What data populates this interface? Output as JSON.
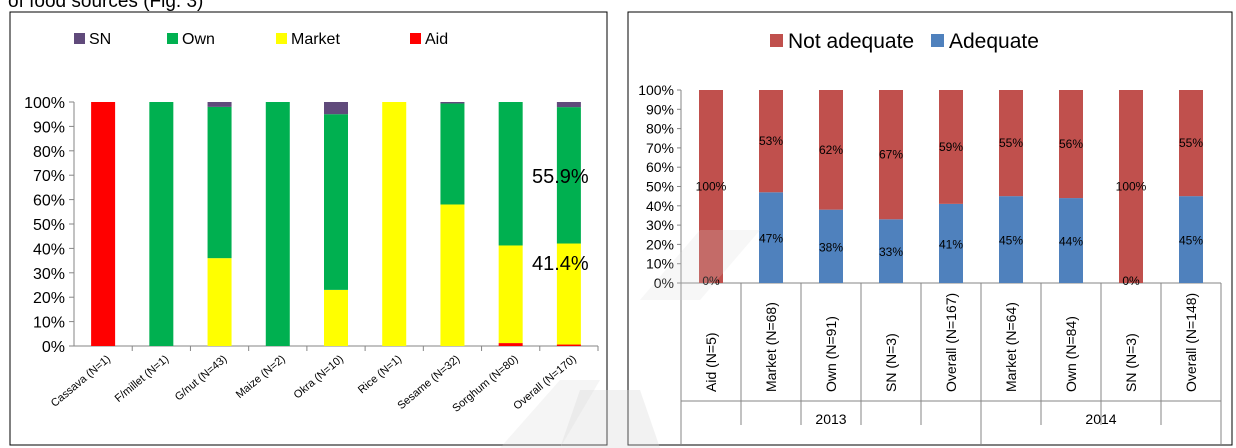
{
  "caption_fragment": "of food sources (Fig. 3)",
  "chart_data": [
    {
      "type": "bar",
      "stacked": true,
      "percent": true,
      "title": "",
      "xlabel": "",
      "ylabel": "",
      "ylim": [
        0,
        100
      ],
      "yticks": [
        "0%",
        "10%",
        "20%",
        "30%",
        "40%",
        "50%",
        "60%",
        "70%",
        "80%",
        "90%",
        "100%"
      ],
      "legend": "top",
      "categories": [
        "Cassava (N=1)",
        "F/millet (N=1)",
        "G/nut (N=43)",
        "Maize (N=2)",
        "Okra (N=10)",
        "Rice (N=1)",
        "Sesame (N=32)",
        "Sorghum (N=80)",
        "Overall (N=170)"
      ],
      "series": [
        {
          "name": "Aid",
          "color": "#ff0000",
          "values": [
            100,
            0,
            0,
            0,
            0,
            0,
            0,
            1.2,
            0.6
          ]
        },
        {
          "name": "Market",
          "color": "#ffff00",
          "values": [
            0,
            0,
            36,
            0,
            23,
            100,
            58,
            40,
            41.4
          ]
        },
        {
          "name": "Own",
          "color": "#00b050",
          "values": [
            0,
            100,
            62,
            100,
            72,
            0,
            41.4,
            58.8,
            55.9
          ]
        },
        {
          "name": "SN",
          "color": "#604a7b",
          "values": [
            0,
            0,
            2,
            0,
            5,
            0,
            0.6,
            0,
            2.1
          ]
        }
      ],
      "legend_order": [
        "SN",
        "Own",
        "Market",
        "Aid"
      ],
      "annotations": [
        "55.9%",
        "41.4%"
      ]
    },
    {
      "type": "bar",
      "stacked": true,
      "percent": true,
      "title": "",
      "xlabel": "",
      "ylabel": "",
      "ylim": [
        0,
        100
      ],
      "yticks": [
        "0%",
        "10%",
        "20%",
        "30%",
        "40%",
        "50%",
        "60%",
        "70%",
        "80%",
        "90%",
        "100%"
      ],
      "legend": "top",
      "categories": [
        "Aid (N=5)",
        "Market (N=68)",
        "Own (N=91)",
        "SN (N=3)",
        "Overall (N=167)",
        "Market (N=64)",
        "Own (N=84)",
        "SN (N=3)",
        "Overall (N=148)"
      ],
      "groups": [
        {
          "label": "2013",
          "count": 5
        },
        {
          "label": "2014",
          "count": 4
        }
      ],
      "series": [
        {
          "name": "Adequate",
          "color": "#4f81bd",
          "values": [
            0,
            47,
            38,
            33,
            41,
            45,
            44,
            0,
            45
          ],
          "labels": [
            "0%",
            "47%",
            "38%",
            "33%",
            "41%",
            "45%",
            "44%",
            "0%",
            "45%"
          ]
        },
        {
          "name": "Not adequate",
          "color": "#c0504d",
          "values": [
            100,
            53,
            62,
            67,
            59,
            55,
            56,
            100,
            55
          ],
          "labels": [
            "100%",
            "53%",
            "62%",
            "67%",
            "59%",
            "55%",
            "56%",
            "100%",
            "55%"
          ]
        }
      ],
      "legend_order": [
        "Not adequate",
        "Adequate"
      ]
    }
  ]
}
